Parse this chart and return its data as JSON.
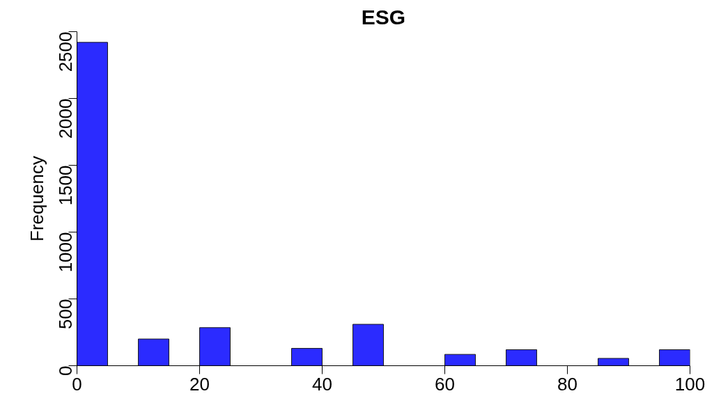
{
  "chart_data": {
    "type": "histogram",
    "title": "ESG",
    "ylabel": "Frequency",
    "bins": [
      0,
      5,
      10,
      15,
      20,
      25,
      30,
      35,
      40,
      45,
      50,
      55,
      60,
      65,
      70,
      75,
      80,
      85,
      90,
      95,
      100
    ],
    "values": [
      2420,
      0,
      200,
      0,
      285,
      0,
      0,
      130,
      0,
      310,
      0,
      0,
      85,
      0,
      120,
      0,
      0,
      55,
      0,
      120
    ],
    "color": "#2b2bff",
    "xlim": [
      0,
      100
    ],
    "xticks": [
      0,
      20,
      40,
      60,
      80,
      100
    ],
    "ylim": [
      0,
      2500
    ],
    "yticks": [
      0,
      500,
      1000,
      1500,
      2000,
      2500
    ],
    "grid": false
  }
}
